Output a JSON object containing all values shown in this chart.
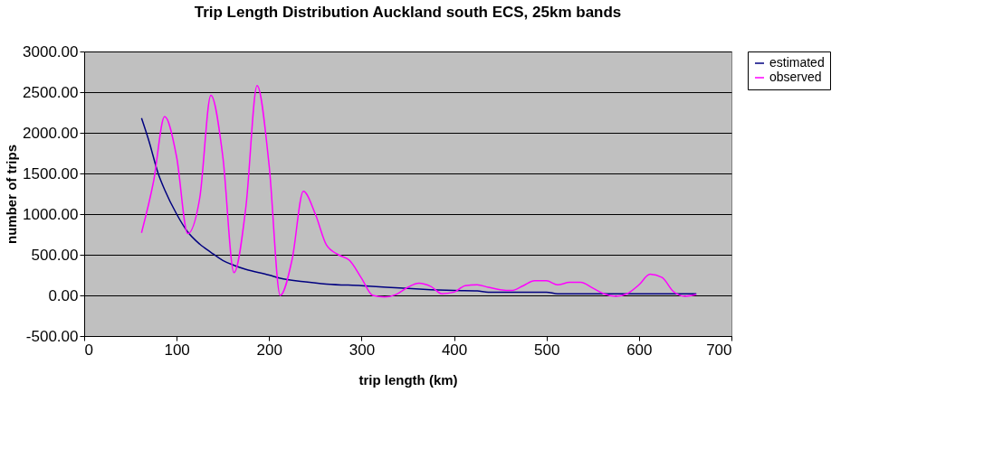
{
  "chart_data": {
    "type": "line",
    "title": "Trip Length Distribution Auckland south ECS, 25km bands",
    "xlabel": "trip length (km)",
    "ylabel": "number of trips",
    "xlim": [
      0,
      700
    ],
    "xticks": [
      0,
      100,
      200,
      300,
      400,
      500,
      600,
      700
    ],
    "ylim": [
      -500,
      3000
    ],
    "yticks": [
      {
        "value": -500,
        "label": "-500.00"
      },
      {
        "value": 0,
        "label": "0.00"
      },
      {
        "value": 500,
        "label": "500.00"
      },
      {
        "value": 1000,
        "label": "1000.00"
      },
      {
        "value": 1500,
        "label": "1500.00"
      },
      {
        "value": 2000,
        "label": "2000.00"
      },
      {
        "value": 2500,
        "label": "2500.00"
      },
      {
        "value": 3000,
        "label": "3000.00"
      }
    ],
    "grid": "y",
    "legend": "right",
    "marker": "none",
    "line_style": "solid",
    "series": [
      {
        "name": "estimated",
        "color": "#000080",
        "x": [
          62,
          70,
          80,
          87,
          100,
          112,
          125,
          137,
          150,
          162,
          175,
          200,
          212,
          237,
          262,
          300,
          350,
          375,
          400,
          425,
          437,
          500,
          512,
          662
        ],
        "values": [
          2180,
          1900,
          1500,
          1300,
          1000,
          780,
          630,
          530,
          430,
          370,
          320,
          250,
          210,
          170,
          140,
          120,
          85,
          70,
          60,
          55,
          40,
          40,
          20,
          20
        ]
      },
      {
        "name": "observed",
        "color": "#ff00ff",
        "x": [
          62,
          75,
          87,
          100,
          112,
          125,
          137,
          150,
          162,
          175,
          187,
          200,
          212,
          225,
          237,
          250,
          262,
          275,
          287,
          300,
          312,
          325,
          337,
          350,
          362,
          375,
          387,
          400,
          412,
          425,
          437,
          450,
          462,
          475,
          487,
          500,
          512,
          525,
          537,
          550,
          562,
          575,
          587,
          600,
          612,
          625,
          637,
          650,
          662
        ],
        "values": [
          770,
          1400,
          2200,
          1700,
          760,
          1200,
          2460,
          1700,
          280,
          1100,
          2580,
          1600,
          0,
          450,
          1280,
          1000,
          620,
          500,
          430,
          210,
          0,
          -20,
          10,
          100,
          150,
          110,
          20,
          40,
          120,
          130,
          100,
          70,
          60,
          120,
          180,
          180,
          130,
          160,
          160,
          90,
          20,
          -10,
          20,
          130,
          260,
          220,
          50,
          -10,
          10
        ]
      }
    ]
  }
}
